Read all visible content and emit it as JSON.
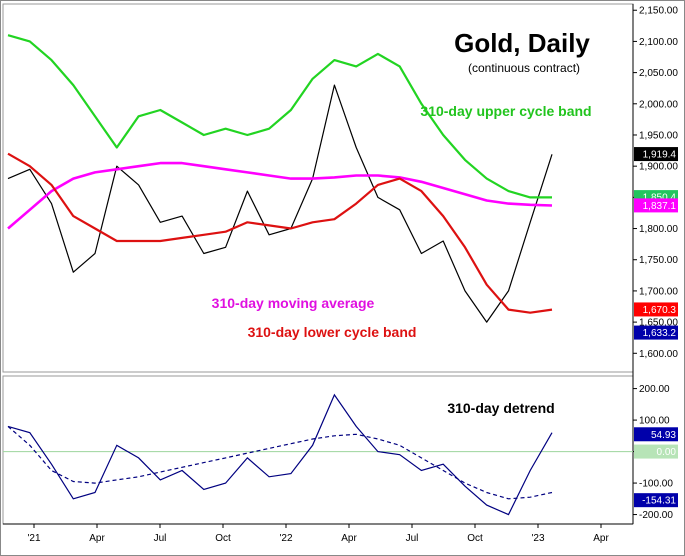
{
  "chart_data": [
    {
      "type": "line",
      "title": "Gold, Daily",
      "subtitle": "(continuous contract)",
      "x_tick_labels": [
        "'21",
        "Apr",
        "Jul",
        "Oct",
        "'22",
        "Apr",
        "Jul",
        "Oct",
        "'23",
        "Apr"
      ],
      "y_tick_labels": [
        "1,600.00",
        "1,650.00",
        "1,700.00",
        "1,750.00",
        "1,800.00",
        "1,850.00",
        "1,900.00",
        "1,950.00",
        "2,000.00",
        "2,050.00",
        "2,100.00",
        "2,150.00"
      ],
      "ylim": [
        1570,
        2160
      ],
      "value_badges": [
        {
          "label": "1,919.4",
          "value": 1919.4,
          "color": "#000000"
        },
        {
          "label": "1,850.4",
          "value": 1850.4,
          "color": "#22c55e"
        },
        {
          "label": "1,837.1",
          "value": 1837.1,
          "color": "#ff00ff"
        },
        {
          "label": "1,670.3",
          "value": 1670.3,
          "color": "#ff0000"
        },
        {
          "label": "1,633.2",
          "value": 1633.2,
          "color": "#0000aa"
        }
      ],
      "annotations": [
        "310-day upper cycle band",
        "310-day moving average",
        "310-day lower cycle band"
      ],
      "colors": {
        "price": "#000000",
        "upper_band": "#22d422",
        "moving_average": "#ff00ff",
        "lower_band": "#dd1111",
        "envelope": "#0000aa"
      },
      "x": [
        "2020-12",
        "2021-01",
        "2021-02",
        "2021-03",
        "2021-04",
        "2021-05",
        "2021-06",
        "2021-07",
        "2021-08",
        "2021-09",
        "2021-10",
        "2021-11",
        "2021-12",
        "2022-01",
        "2022-02",
        "2022-03",
        "2022-04",
        "2022-05",
        "2022-06",
        "2022-07",
        "2022-08",
        "2022-09",
        "2022-10",
        "2022-11",
        "2022-12",
        "2023-01"
      ],
      "series": [
        {
          "name": "price",
          "values": [
            1880,
            1895,
            1840,
            1730,
            1760,
            1900,
            1870,
            1810,
            1820,
            1760,
            1770,
            1860,
            1790,
            1800,
            1880,
            2030,
            1930,
            1850,
            1830,
            1760,
            1780,
            1700,
            1650,
            1700,
            1810,
            1919
          ]
        },
        {
          "name": "310-day upper cycle band",
          "values": [
            2110,
            2100,
            2070,
            2030,
            1980,
            1930,
            1980,
            1990,
            1970,
            1950,
            1960,
            1950,
            1960,
            1990,
            2040,
            2070,
            2060,
            2080,
            2060,
            2000,
            1950,
            1910,
            1880,
            1860,
            1850,
            1850
          ]
        },
        {
          "name": "310-day moving average",
          "values": [
            1800,
            1830,
            1860,
            1880,
            1890,
            1895,
            1900,
            1905,
            1905,
            1900,
            1895,
            1890,
            1885,
            1880,
            1880,
            1882,
            1885,
            1885,
            1882,
            1875,
            1865,
            1855,
            1845,
            1840,
            1838,
            1837
          ]
        },
        {
          "name": "310-day lower cycle band",
          "values": [
            1920,
            1900,
            1870,
            1820,
            1800,
            1780,
            1780,
            1780,
            1785,
            1790,
            1795,
            1810,
            1805,
            1800,
            1810,
            1815,
            1840,
            1870,
            1880,
            1860,
            1820,
            1770,
            1710,
            1670,
            1665,
            1670
          ]
        }
      ]
    },
    {
      "type": "line",
      "title": "310-day detrend",
      "x_tick_labels": [
        "'21",
        "Apr",
        "Jul",
        "Oct",
        "'22",
        "Apr",
        "Jul",
        "Oct",
        "'23",
        "Apr"
      ],
      "y_tick_labels": [
        "-200.00",
        "-100.00",
        "0.00",
        "100.00",
        "200.00"
      ],
      "ylim": [
        -230,
        240
      ],
      "value_badges": [
        {
          "label": "54.93",
          "value": 54.93,
          "color": "#0000aa"
        },
        {
          "label": "0.00",
          "value": 0,
          "color": "#b7e4b7"
        },
        {
          "label": "-154.31",
          "value": -154.31,
          "color": "#0000aa"
        }
      ],
      "x": [
        "2020-12",
        "2021-01",
        "2021-02",
        "2021-03",
        "2021-04",
        "2021-05",
        "2021-06",
        "2021-07",
        "2021-08",
        "2021-09",
        "2021-10",
        "2021-11",
        "2021-12",
        "2022-01",
        "2022-02",
        "2022-03",
        "2022-04",
        "2022-05",
        "2022-06",
        "2022-07",
        "2022-08",
        "2022-09",
        "2022-10",
        "2022-11",
        "2022-12",
        "2023-01"
      ],
      "series": [
        {
          "values": [
            80,
            60,
            -40,
            -150,
            -130,
            20,
            -20,
            -90,
            -60,
            -120,
            -100,
            -20,
            -80,
            -70,
            20,
            180,
            80,
            0,
            -10,
            -60,
            -40,
            -110,
            -170,
            -200,
            -60,
            60
          ]
        },
        {
          "values": [
            80,
            20,
            -60,
            -95,
            -100,
            -90,
            -80,
            -65,
            -50,
            -35,
            -20,
            -5,
            10,
            25,
            40,
            50,
            55,
            40,
            20,
            -20,
            -60,
            -100,
            -130,
            -150,
            -145,
            -130
          ]
        }
      ],
      "colors": {
        "detrend": "#000080",
        "cycle": "#000080"
      }
    }
  ]
}
